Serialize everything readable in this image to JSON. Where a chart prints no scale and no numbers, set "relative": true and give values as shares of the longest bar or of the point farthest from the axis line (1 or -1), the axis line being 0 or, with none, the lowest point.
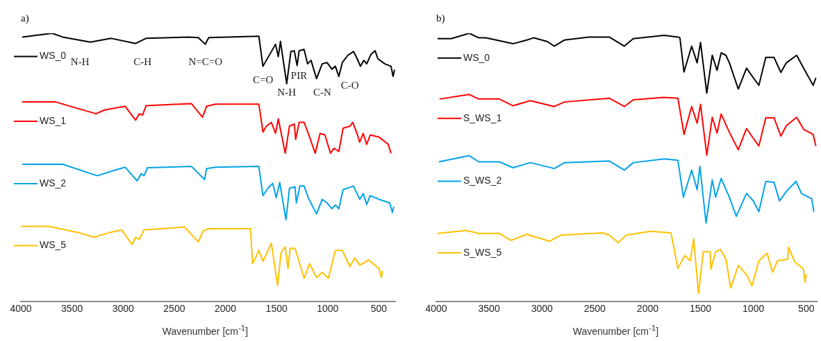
{
  "chart_data": [
    {
      "type": "line",
      "title": "a)",
      "xlabel": "Wavenumber [cm$^{-1}$]",
      "relative": true,
      "marker": "none",
      "xlim": [
        4000,
        340
      ],
      "xticks": [
        4000,
        3500,
        3000,
        2500,
        2000,
        1500,
        1000,
        500
      ],
      "legend": "left",
      "annotations": [
        "N-H",
        "C-H",
        "N=C=O",
        "C=O",
        "N-H",
        "PIR",
        "C-N",
        "C-O"
      ],
      "series": [
        {
          "name": "WS_0",
          "color": "#000000",
          "x": [
            3986,
            3694,
            3592,
            3320,
            3116,
            2878,
            2776,
            2367,
            2265,
            2197,
            2163,
            1673,
            1633,
            1510,
            1483,
            1462,
            1401,
            1360,
            1327,
            1299,
            1279,
            1231,
            1197,
            1163,
            1109,
            1054,
            1007,
            959,
            925,
            891,
            857,
            803,
            748,
            714,
            680,
            646,
            619,
            578,
            537,
            510,
            442,
            381,
            361,
            347
          ],
          "values": [
            0.986,
            1.0,
            0.986,
            0.967,
            0.981,
            0.962,
            0.981,
            0.986,
            0.984,
            0.959,
            0.984,
            0.989,
            0.877,
            0.959,
            0.913,
            0.97,
            0.812,
            0.932,
            0.935,
            0.88,
            0.935,
            0.94,
            0.886,
            0.899,
            0.831,
            0.886,
            0.891,
            0.866,
            0.877,
            0.839,
            0.891,
            0.918,
            0.932,
            0.907,
            0.877,
            0.899,
            0.886,
            0.921,
            0.935,
            0.905,
            0.886,
            0.877,
            0.839,
            0.864
          ]
        },
        {
          "name": "WS_1",
          "color": "#ff0000",
          "x": [
            3986,
            3660,
            3265,
            3184,
            2980,
            2878,
            2843,
            2810,
            2776,
            2333,
            2224,
            2184,
            2095,
            1673,
            1633,
            1599,
            1551,
            1510,
            1483,
            1415,
            1374,
            1327,
            1313,
            1279,
            1231,
            1190,
            1122,
            1075,
            1027,
            973,
            939,
            891,
            850,
            782,
            755,
            714,
            687,
            653,
            619,
            585,
            497,
            408,
            381
          ],
          "values": [
            0.744,
            0.744,
            0.7,
            0.714,
            0.728,
            0.676,
            0.7,
            0.695,
            0.73,
            0.738,
            0.687,
            0.728,
            0.736,
            0.736,
            0.632,
            0.654,
            0.668,
            0.627,
            0.681,
            0.553,
            0.654,
            0.662,
            0.605,
            0.668,
            0.668,
            0.627,
            0.553,
            0.627,
            0.621,
            0.553,
            0.572,
            0.559,
            0.646,
            0.654,
            0.668,
            0.627,
            0.594,
            0.627,
            0.586,
            0.621,
            0.613,
            0.586,
            0.553
          ]
        },
        {
          "name": "WS_2",
          "color": "#00a2e8",
          "x": [
            3986,
            3592,
            3252,
            3082,
            2980,
            2864,
            2823,
            2796,
            2762,
            2333,
            2204,
            2184,
            2095,
            1673,
            1633,
            1585,
            1537,
            1503,
            1469,
            1408,
            1374,
            1320,
            1306,
            1272,
            1231,
            1190,
            1109,
            1054,
            1007,
            959,
            925,
            891,
            850,
            748,
            687,
            653,
            619,
            585,
            497,
            394,
            367,
            354
          ],
          "values": [
            0.512,
            0.512,
            0.469,
            0.49,
            0.501,
            0.45,
            0.477,
            0.469,
            0.499,
            0.504,
            0.455,
            0.496,
            0.501,
            0.504,
            0.395,
            0.422,
            0.441,
            0.387,
            0.444,
            0.305,
            0.422,
            0.428,
            0.368,
            0.431,
            0.431,
            0.387,
            0.327,
            0.381,
            0.368,
            0.346,
            0.36,
            0.346,
            0.417,
            0.431,
            0.381,
            0.403,
            0.362,
            0.395,
            0.381,
            0.368,
            0.332,
            0.354
          ]
        },
        {
          "name": "WS_5",
          "color": "#ffc000",
          "x": [
            4000,
            3728,
            3456,
            3286,
            3116,
            3014,
            2912,
            2878,
            2843,
            2796,
            2401,
            2265,
            2218,
            2163,
            1755,
            1735,
            1707,
            1673,
            1633,
            1551,
            1490,
            1456,
            1415,
            1388,
            1367,
            1320,
            1286,
            1231,
            1177,
            1109,
            1054,
            993,
            925,
            857,
            782,
            735,
            687,
            599,
            497,
            476,
            463
          ],
          "values": [
            0.281,
            0.281,
            0.259,
            0.24,
            0.259,
            0.267,
            0.213,
            0.24,
            0.232,
            0.267,
            0.278,
            0.223,
            0.264,
            0.272,
            0.272,
            0.142,
            0.163,
            0.191,
            0.15,
            0.218,
            0.06,
            0.183,
            0.204,
            0.123,
            0.199,
            0.199,
            0.158,
            0.087,
            0.142,
            0.09,
            0.109,
            0.087,
            0.191,
            0.191,
            0.131,
            0.163,
            0.136,
            0.155,
            0.123,
            0.09,
            0.114
          ]
        }
      ]
    },
    {
      "type": "line",
      "title": "b)",
      "legend": "left",
      "xlabel": "Wavenumber [cm$^{-1}$]",
      "relative": true,
      "marker": "none",
      "xlim": [
        4000,
        400
      ],
      "xticks": [
        4000,
        3500,
        3000,
        2500,
        2000,
        1500,
        1000,
        500
      ],
      "series": [
        {
          "name": "WS_0",
          "color": "#000000",
          "x": [
            3987,
            3857,
            3688,
            3597,
            3532,
            3273,
            3143,
            3078,
            2948,
            2883,
            2786,
            2558,
            2363,
            2221,
            2136,
            1844,
            1714,
            1695,
            1656,
            1584,
            1532,
            1500,
            1441,
            1389,
            1344,
            1305,
            1260,
            1227,
            1143,
            1065,
            1000,
            948,
            883,
            805,
            740,
            688,
            591,
            525,
            435,
            409
          ],
          "values": [
            0.98,
            0.98,
            1.0,
            0.983,
            0.983,
            0.961,
            0.975,
            0.983,
            0.969,
            0.952,
            0.975,
            0.986,
            0.986,
            0.952,
            0.98,
            0.992,
            0.986,
            0.983,
            0.856,
            0.952,
            0.89,
            0.966,
            0.777,
            0.918,
            0.862,
            0.927,
            0.918,
            0.89,
            0.792,
            0.87,
            0.834,
            0.806,
            0.91,
            0.91,
            0.854,
            0.89,
            0.918,
            0.87,
            0.806,
            0.834
          ]
        },
        {
          "name": "S_WS_1",
          "color": "#ff0000",
          "x": [
            3968,
            3688,
            3597,
            3403,
            3273,
            3110,
            2883,
            2786,
            2363,
            2221,
            2136,
            1844,
            1714,
            1656,
            1584,
            1532,
            1500,
            1441,
            1389,
            1344,
            1305,
            1227,
            1143,
            1065,
            1000,
            948,
            883,
            805,
            740,
            688,
            591,
            525,
            435,
            409
          ],
          "values": [
            0.755,
            0.772,
            0.755,
            0.755,
            0.73,
            0.749,
            0.727,
            0.744,
            0.758,
            0.727,
            0.752,
            0.761,
            0.758,
            0.623,
            0.727,
            0.665,
            0.735,
            0.546,
            0.687,
            0.628,
            0.699,
            0.631,
            0.566,
            0.645,
            0.608,
            0.58,
            0.685,
            0.685,
            0.617,
            0.656,
            0.687,
            0.642,
            0.623,
            0.58
          ]
        },
        {
          "name": "S_WS_2",
          "color": "#00a2e8",
          "x": [
            3974,
            3688,
            3597,
            3403,
            3273,
            3110,
            2883,
            2786,
            2363,
            2221,
            2136,
            1844,
            1714,
            1662,
            1584,
            1532,
            1506,
            1448,
            1389,
            1357,
            1305,
            1227,
            1162,
            1065,
            1000,
            948,
            883,
            805,
            753,
            688,
            597,
            545,
            448,
            428
          ],
          "values": [
            0.521,
            0.544,
            0.521,
            0.521,
            0.499,
            0.518,
            0.496,
            0.518,
            0.524,
            0.49,
            0.518,
            0.532,
            0.527,
            0.389,
            0.49,
            0.417,
            0.504,
            0.293,
            0.454,
            0.389,
            0.459,
            0.389,
            0.318,
            0.403,
            0.375,
            0.335,
            0.448,
            0.445,
            0.375,
            0.411,
            0.448,
            0.403,
            0.383,
            0.335
          ]
        },
        {
          "name": "S_WS_5",
          "color": "#ffc000",
          "x": [
            3987,
            3714,
            3597,
            3403,
            3292,
            3143,
            2928,
            2818,
            2428,
            2363,
            2279,
            2201,
            1974,
            1779,
            1714,
            1649,
            1597,
            1565,
            1519,
            1474,
            1409,
            1402,
            1357,
            1311,
            1260,
            1214,
            1143,
            1065,
            1013,
            948,
            870,
            818,
            773,
            675,
            669,
            610,
            526,
            512,
            500
          ],
          "values": [
            0.254,
            0.265,
            0.254,
            0.254,
            0.228,
            0.251,
            0.225,
            0.248,
            0.256,
            0.248,
            0.22,
            0.248,
            0.262,
            0.256,
            0.124,
            0.172,
            0.152,
            0.234,
            0.031,
            0.186,
            0.186,
            0.121,
            0.186,
            0.194,
            0.158,
            0.051,
            0.135,
            0.101,
            0.059,
            0.152,
            0.18,
            0.11,
            0.152,
            0.158,
            0.203,
            0.149,
            0.121,
            0.073,
            0.101
          ]
        }
      ]
    }
  ]
}
